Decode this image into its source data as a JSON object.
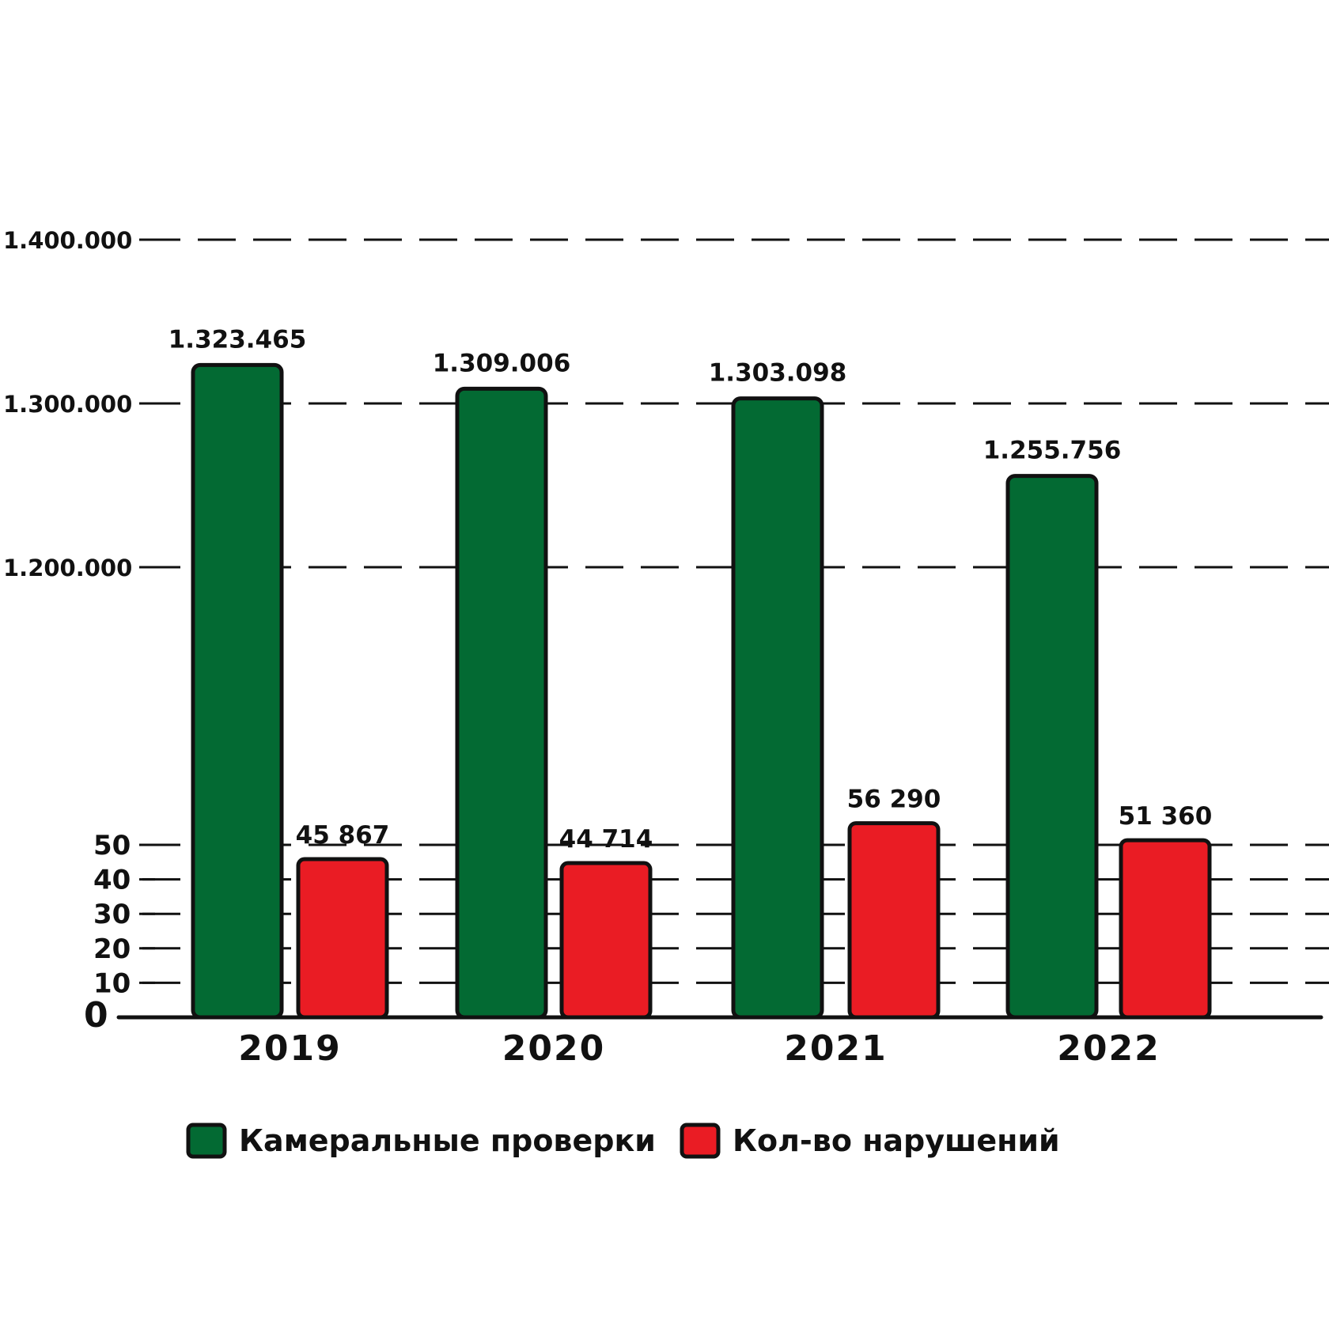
{
  "chart_data": {
    "type": "bar",
    "categories": [
      "2019",
      "2020",
      "2021",
      "2022"
    ],
    "series": [
      {
        "name": "Камеральные проверки",
        "values": [
          1323465,
          1309006,
          1303098,
          1255756
        ],
        "labels": [
          "1.323.465",
          "1.309.006",
          "1.303.098",
          "1.255.756"
        ],
        "color": "#036a33"
      },
      {
        "name": "Кол-во нарушений",
        "values": [
          45867,
          44714,
          56290,
          51360
        ],
        "labels": [
          "45 867",
          "44 714",
          "56 290",
          "51 360"
        ],
        "color": "#ea1c24"
      }
    ],
    "upper_axis": {
      "ticks": [
        1200000,
        1300000,
        1400000
      ],
      "tick_labels": [
        "1.200.000",
        "1.300.000",
        "1.400.000"
      ]
    },
    "lower_axis": {
      "ticks": [
        0,
        10,
        20,
        30,
        40,
        50
      ],
      "tick_labels": [
        "0",
        "10",
        "20",
        "30",
        "40",
        "50"
      ],
      "unit_multiplier": 1000
    },
    "axis_break": true,
    "grid": true,
    "legend_position": "bottom"
  }
}
